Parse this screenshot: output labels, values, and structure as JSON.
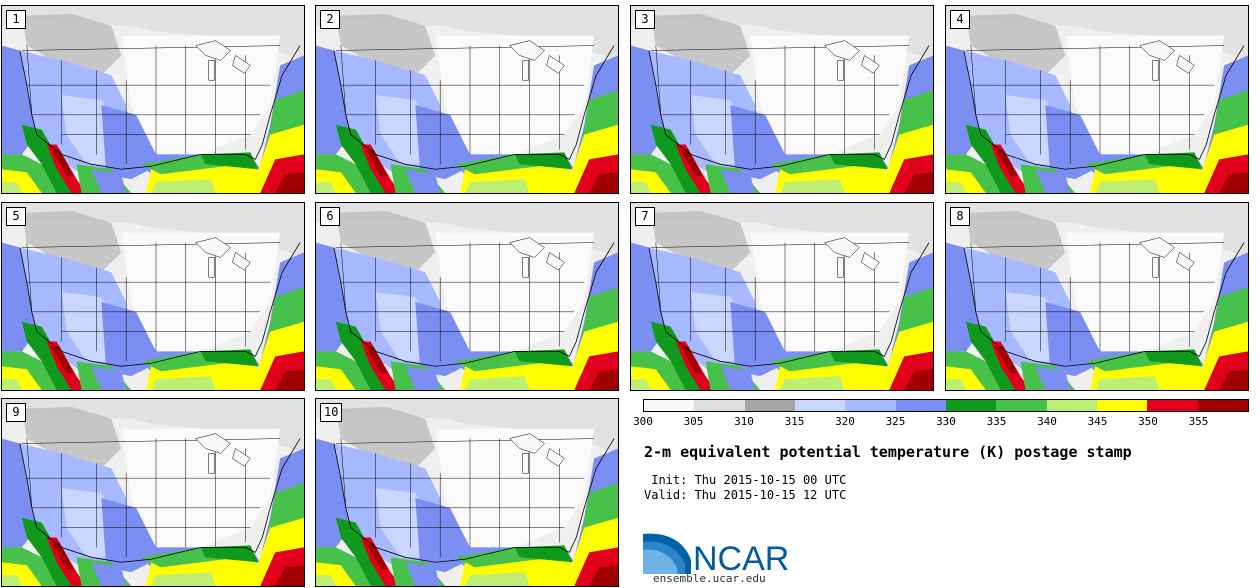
{
  "panels": [
    "1",
    "2",
    "3",
    "4",
    "5",
    "6",
    "7",
    "8",
    "9",
    "10"
  ],
  "colorbar": {
    "colors": [
      "#f9f9f9",
      "#e0e0e0",
      "#a6a6a6",
      "#c9d6ff",
      "#a7b9ff",
      "#7b8ef2",
      "#109a1d",
      "#48c14a",
      "#bfee74",
      "#ffff00",
      "#e0001b",
      "#a10000"
    ],
    "ticks": [
      "300",
      "305",
      "310",
      "315",
      "320",
      "325",
      "330",
      "335",
      "340",
      "345",
      "350",
      "355"
    ]
  },
  "title": "2-m equivalent potential temperature (K) postage stamp",
  "init_line": " Init: Thu 2015-10-15 00 UTC",
  "valid_line": "Valid: Thu 2015-10-15 12 UTC",
  "logo_text": "NCAR",
  "url": "ensemble.ucar.edu"
}
